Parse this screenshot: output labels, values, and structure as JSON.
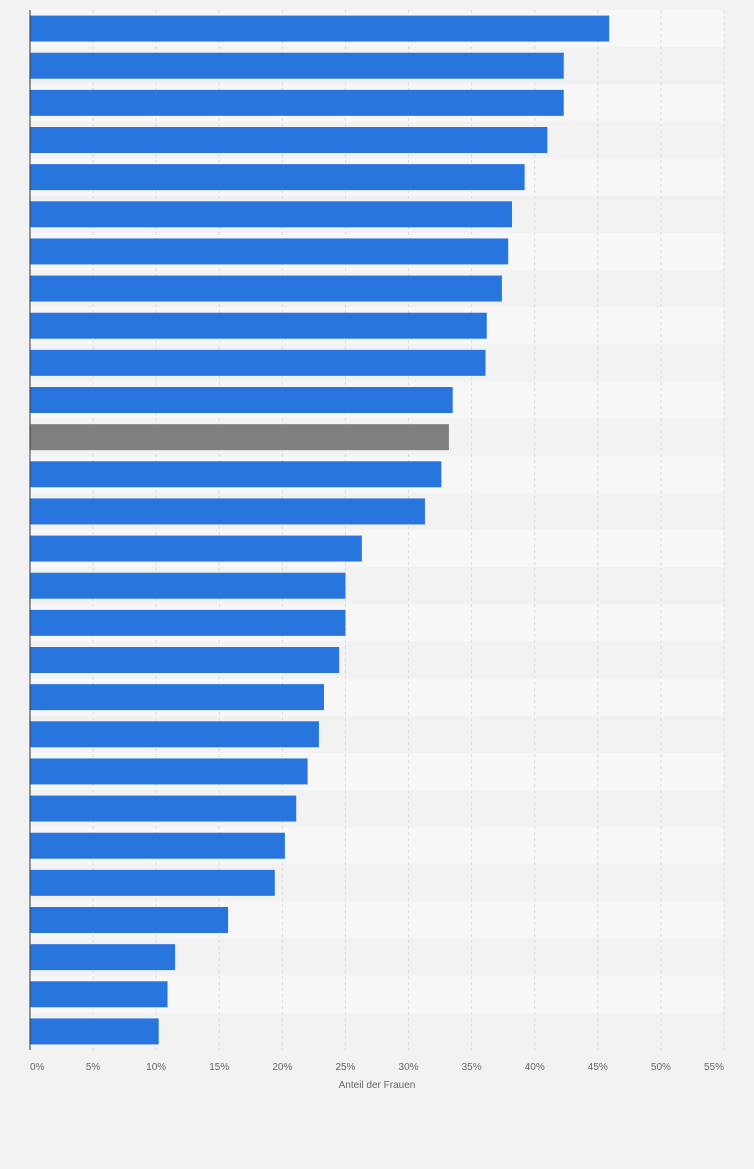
{
  "chart_data": {
    "type": "bar",
    "orientation": "horizontal",
    "xlabel": "Anteil der Frauen",
    "ylabel": "",
    "xlim": [
      0,
      55
    ],
    "tick_labels": [
      "0%",
      "5%",
      "10%",
      "15%",
      "20%",
      "25%",
      "30%",
      "35%",
      "40%",
      "45%",
      "50%",
      "55%"
    ],
    "tick_values": [
      0,
      5,
      10,
      15,
      20,
      25,
      30,
      35,
      40,
      45,
      50,
      55
    ],
    "grid": true,
    "values": [
      45.9,
      42.3,
      42.3,
      41.0,
      39.2,
      38.2,
      37.9,
      37.4,
      36.2,
      36.1,
      33.5,
      33.2,
      32.6,
      31.3,
      26.3,
      25.0,
      25.0,
      24.5,
      23.3,
      22.9,
      22.0,
      21.1,
      20.2,
      19.4,
      15.7,
      11.5,
      10.9,
      10.2
    ],
    "highlight_index": 11,
    "colors": {
      "bar": "#2876dd",
      "highlight": "#7f7f7f",
      "band_light": "#f7f7f7",
      "band_dark": "#f2f2f2",
      "grid": "#dcdcdc",
      "axis": "#333333",
      "text": "#666666"
    }
  }
}
